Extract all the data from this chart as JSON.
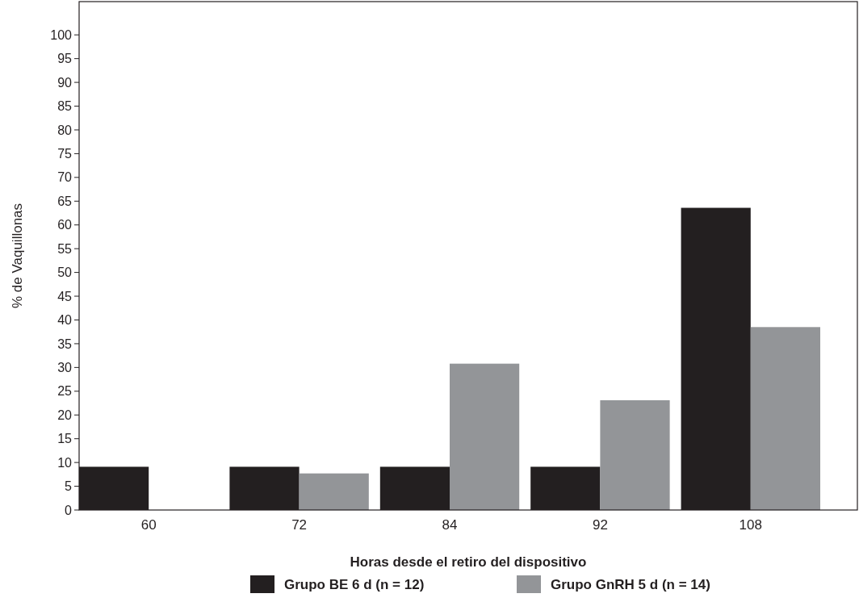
{
  "chart_data": {
    "type": "bar",
    "xlabel": "Horas desde el retiro del dispositivo",
    "ylabel": "% de Vaquillonas",
    "categories": [
      "60",
      "72",
      "84",
      "92",
      "108"
    ],
    "series": [
      {
        "name": "Grupo BE 6 d (n = 12)",
        "color": "#231f20",
        "values": [
          9.1,
          9.1,
          9.1,
          9.1,
          63.6
        ]
      },
      {
        "name": "Grupo GnRH 5 d (n = 14)",
        "color": "#939598",
        "values": [
          0,
          7.7,
          30.8,
          23.1,
          38.5
        ]
      }
    ],
    "ylim": [
      0,
      107
    ],
    "yticks": [
      0,
      5,
      10,
      15,
      20,
      25,
      30,
      35,
      40,
      45,
      50,
      55,
      60,
      65,
      70,
      75,
      80,
      85,
      90,
      95,
      100
    ],
    "grid": false,
    "legend": "bottom"
  }
}
